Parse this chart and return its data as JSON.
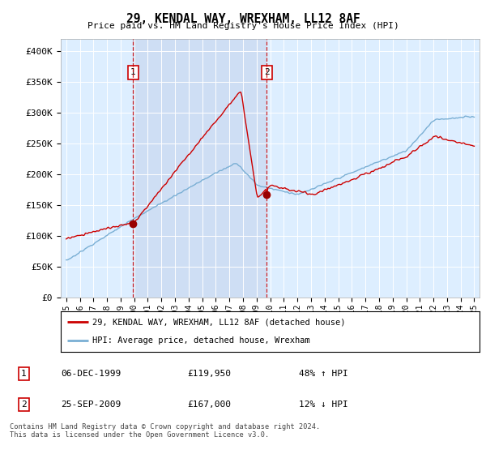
{
  "title": "29, KENDAL WAY, WREXHAM, LL12 8AF",
  "subtitle": "Price paid vs. HM Land Registry's House Price Index (HPI)",
  "background_color": "#ffffff",
  "plot_bg_color": "#ddeeff",
  "shade_color": "#c8d8f0",
  "ylim": [
    0,
    420000
  ],
  "yticks": [
    0,
    50000,
    100000,
    150000,
    200000,
    250000,
    300000,
    350000,
    400000
  ],
  "ytick_labels": [
    "£0",
    "£50K",
    "£100K",
    "£150K",
    "£200K",
    "£250K",
    "£300K",
    "£350K",
    "£400K"
  ],
  "sale1_x": 1999.92,
  "sale1_y": 119950,
  "sale1_label": "1",
  "sale2_x": 2009.73,
  "sale2_y": 167000,
  "sale2_label": "2",
  "red_line_color": "#cc0000",
  "blue_line_color": "#7aafd4",
  "sale_dot_color": "#990000",
  "dashed_line_color": "#cc0000",
  "legend_entries": [
    "29, KENDAL WAY, WREXHAM, LL12 8AF (detached house)",
    "HPI: Average price, detached house, Wrexham"
  ],
  "table_rows": [
    [
      "1",
      "06-DEC-1999",
      "£119,950",
      "48% ↑ HPI"
    ],
    [
      "2",
      "25-SEP-2009",
      "£167,000",
      "12% ↓ HPI"
    ]
  ],
  "footer": "Contains HM Land Registry data © Crown copyright and database right 2024.\nThis data is licensed under the Open Government Licence v3.0.",
  "xmin": 1994.6,
  "xmax": 2025.4
}
